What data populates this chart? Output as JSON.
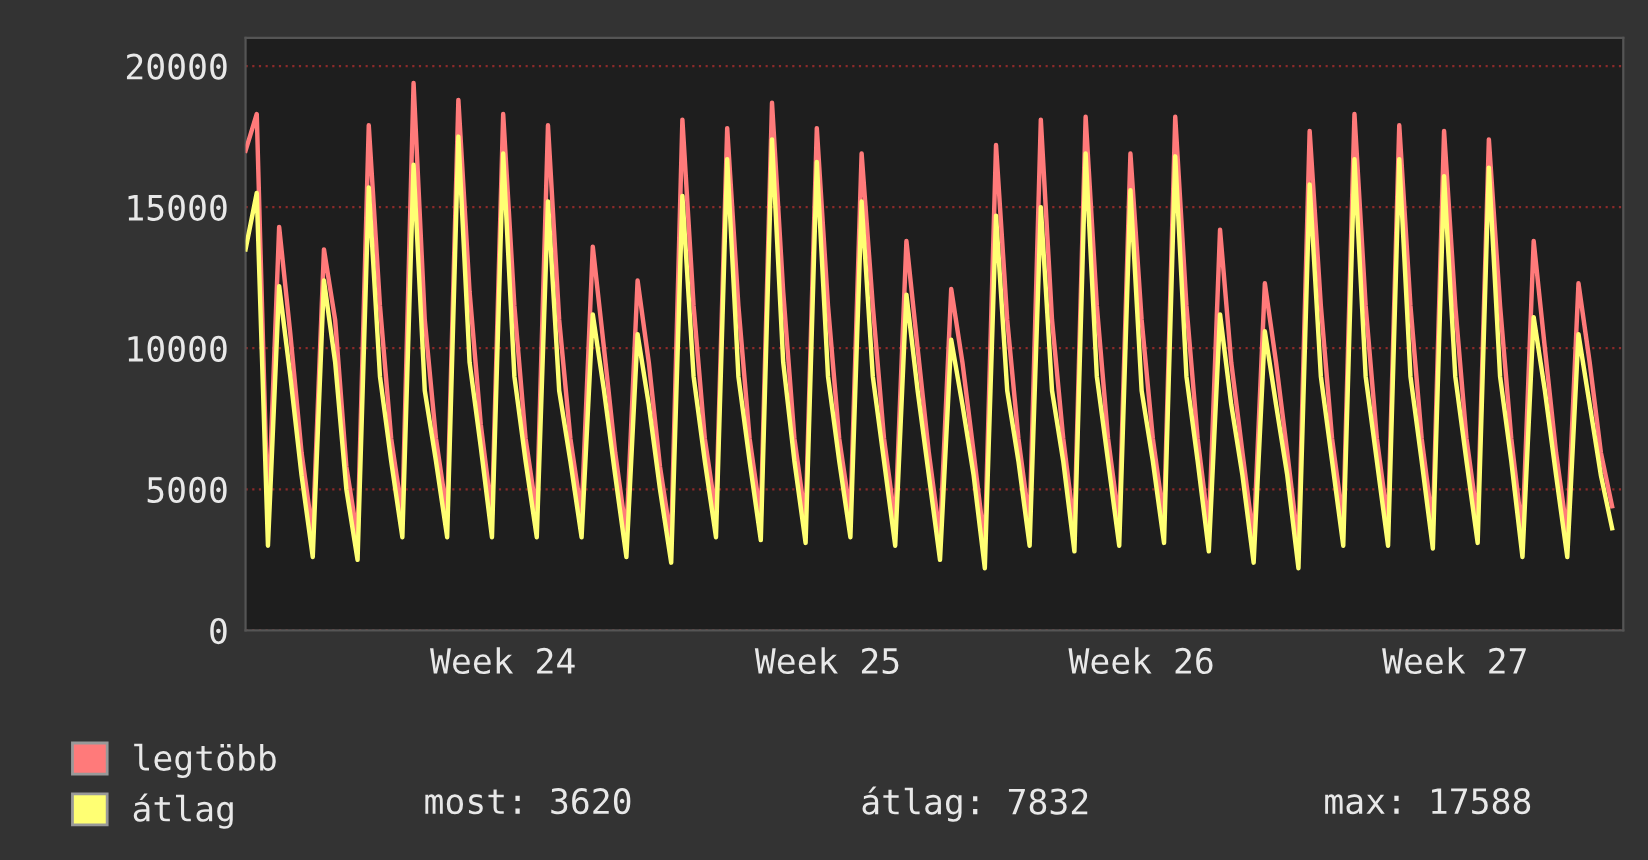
{
  "chart_data": {
    "type": "line",
    "categories": [
      null,
      null,
      null,
      null,
      null,
      null,
      null,
      null,
      null,
      null,
      null,
      null,
      null,
      null,
      null,
      null,
      null,
      null,
      null,
      null,
      null,
      null,
      null,
      "Week 24",
      null,
      null,
      null,
      null,
      null,
      null,
      null,
      null,
      null,
      null,
      null,
      null,
      null,
      null,
      null,
      null,
      null,
      null,
      null,
      null,
      null,
      null,
      null,
      null,
      null,
      null,
      null,
      null,
      "Week 25",
      null,
      null,
      null,
      null,
      null,
      null,
      null,
      null,
      null,
      null,
      null,
      null,
      null,
      null,
      null,
      null,
      null,
      null,
      null,
      null,
      null,
      null,
      null,
      null,
      null,
      null,
      null,
      "Week 26",
      null,
      null,
      null,
      null,
      null,
      null,
      null,
      null,
      null,
      null,
      null,
      null,
      null,
      null,
      null,
      null,
      null,
      null,
      null,
      null,
      null,
      null,
      null,
      null,
      null,
      null,
      null,
      "Week 27",
      null,
      null,
      null,
      null,
      null,
      null,
      null,
      null,
      null,
      null,
      null,
      null,
      null,
      null
    ],
    "series": [
      {
        "name": "legtöbb",
        "color": "#ff7a7a",
        "values": [
          17000,
          18300,
          3800,
          14300,
          10500,
          6300,
          3400,
          13500,
          11000,
          5800,
          3300,
          17900,
          11500,
          6800,
          4100,
          19400,
          11000,
          6800,
          4100,
          18800,
          12000,
          7300,
          4100,
          18300,
          11500,
          6800,
          4100,
          17900,
          11000,
          6800,
          4100,
          13600,
          10000,
          6300,
          3400,
          12400,
          9500,
          5800,
          3200,
          18100,
          11500,
          6800,
          4100,
          17800,
          11500,
          6800,
          4000,
          18700,
          12000,
          6800,
          3900,
          17800,
          11500,
          6800,
          4100,
          16900,
          11500,
          6800,
          3800,
          13800,
          10000,
          6300,
          3300,
          12100,
          9500,
          6300,
          3000,
          17200,
          11000,
          6800,
          3800,
          18100,
          11000,
          6800,
          3600,
          18200,
          11500,
          6800,
          3800,
          16900,
          11000,
          6800,
          3900,
          18200,
          11500,
          6800,
          3600,
          14200,
          9500,
          6300,
          3200,
          12300,
          9500,
          6300,
          3000,
          17700,
          11500,
          6800,
          3800,
          18300,
          11500,
          6800,
          3800,
          17900,
          11500,
          6800,
          3700,
          17700,
          11500,
          6800,
          3900,
          17400,
          11500,
          6800,
          3400,
          13800,
          10000,
          6300,
          3400,
          12300,
          9500,
          6300,
          4400
        ]
      },
      {
        "name": "átlag",
        "color": "#ffff73",
        "values": [
          13500,
          15500,
          3000,
          12200,
          9000,
          5500,
          2600,
          12400,
          9500,
          5000,
          2500,
          15700,
          9000,
          6000,
          3300,
          16500,
          8500,
          6000,
          3300,
          17500,
          9500,
          6500,
          3300,
          16900,
          9000,
          6000,
          3300,
          15200,
          8500,
          6000,
          3300,
          11200,
          8500,
          5500,
          2600,
          10500,
          8000,
          5000,
          2400,
          15400,
          9000,
          6000,
          3300,
          16700,
          9000,
          6000,
          3200,
          17400,
          9500,
          6000,
          3100,
          16600,
          9000,
          6000,
          3300,
          15200,
          9000,
          6000,
          3000,
          11900,
          8500,
          5500,
          2500,
          10300,
          8000,
          5500,
          2200,
          14700,
          8500,
          6000,
          3000,
          15000,
          8500,
          6000,
          2800,
          16900,
          9000,
          6000,
          3000,
          15600,
          8500,
          6000,
          3100,
          16800,
          9000,
          6000,
          2800,
          11200,
          8000,
          5500,
          2400,
          10600,
          8000,
          5500,
          2200,
          15800,
          9000,
          6000,
          3000,
          16700,
          9000,
          6000,
          3000,
          16700,
          9000,
          6000,
          2900,
          16100,
          9000,
          6000,
          3100,
          16400,
          9000,
          6000,
          2600,
          11100,
          8500,
          5500,
          2600,
          10500,
          8000,
          5500,
          3620
        ]
      }
    ],
    "ylim": [
      0,
      21000
    ],
    "yticks": [
      0,
      5000,
      10000,
      15000,
      20000
    ],
    "grid": "y",
    "legend": "bottom left",
    "line_style": "solid",
    "annotations": [
      "most: 3620",
      "átlag: 7832",
      "max: 17588"
    ]
  }
}
